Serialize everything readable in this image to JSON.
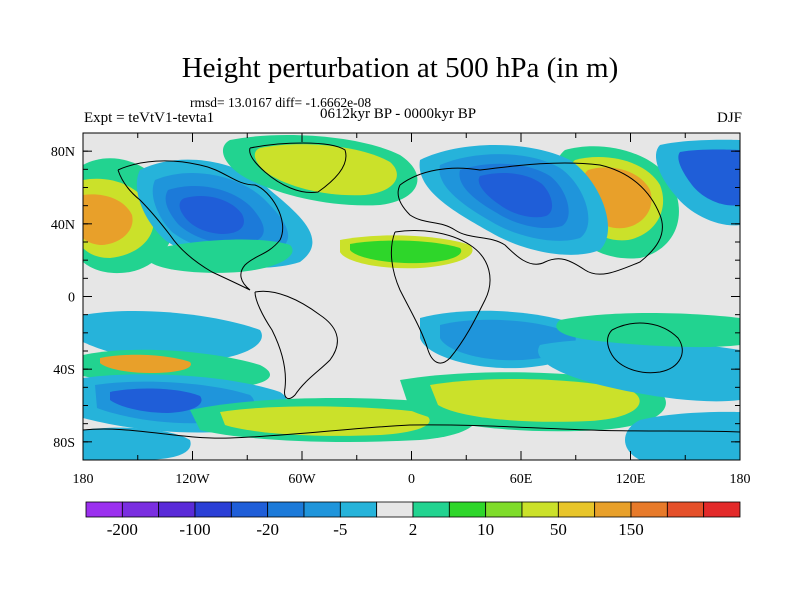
{
  "title": "Height perturbation at 500 hPa (in m)",
  "stats": "rmsd= 13.0167 diff= -1.6662e-08",
  "expt": "Expt = teVtV1-tevta1",
  "period": "0612kyr BP - 0000kyr BP",
  "season": "DJF",
  "map": {
    "lon_range": [
      -180,
      180
    ],
    "lat_range": [
      -90,
      90
    ],
    "lon_ticks": [
      {
        "lon": -180,
        "label": "180"
      },
      {
        "lon": -120,
        "label": "120W"
      },
      {
        "lon": -60,
        "label": "60W"
      },
      {
        "lon": 0,
        "label": "0"
      },
      {
        "lon": 60,
        "label": "60E"
      },
      {
        "lon": 120,
        "label": "120E"
      },
      {
        "lon": 180,
        "label": "180"
      }
    ],
    "lat_ticks": [
      {
        "lat": 80,
        "label": "80N"
      },
      {
        "lat": 40,
        "label": "40N"
      },
      {
        "lat": 0,
        "label": "0"
      },
      {
        "lat": -40,
        "label": "40S"
      },
      {
        "lat": -80,
        "label": "80S"
      }
    ],
    "background_color": "#e6e6e6"
  },
  "colorbar": {
    "colors": [
      "#9b30ef",
      "#7a2ee0",
      "#5a2bd8",
      "#2b3fd6",
      "#1f5ed8",
      "#1c7ad9",
      "#1f95db",
      "#26b3da",
      "#e6e6e6",
      "#22d390",
      "#2ed62a",
      "#7fdc2a",
      "#cbe12a",
      "#e8c52a",
      "#e8a02a",
      "#e77a2a",
      "#e5502a",
      "#e32a2a"
    ],
    "labels": [
      {
        "edge": 1,
        "text": "-200"
      },
      {
        "edge": 3,
        "text": "-100"
      },
      {
        "edge": 5,
        "text": "-20"
      },
      {
        "edge": 7,
        "text": "-5"
      },
      {
        "edge": 9,
        "text": "2"
      },
      {
        "edge": 11,
        "text": "10"
      },
      {
        "edge": 13,
        "text": "50"
      },
      {
        "edge": 15,
        "text": "150"
      }
    ]
  }
}
